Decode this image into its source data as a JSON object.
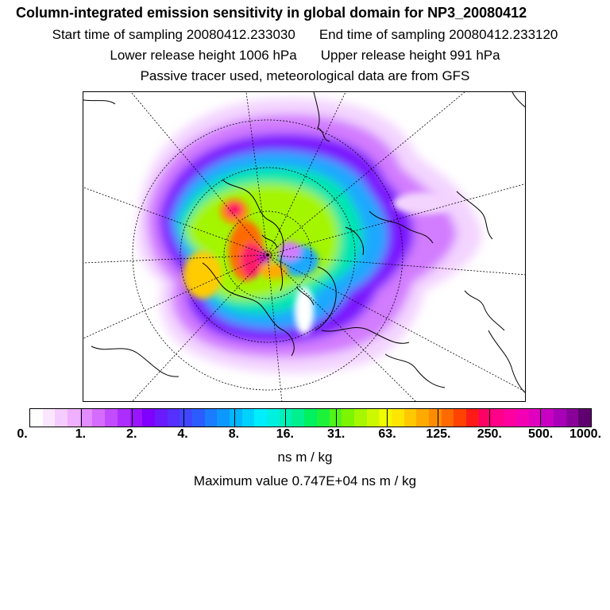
{
  "header": {
    "title": "Column-integrated emission sensitivity in global domain for NP3_20080412",
    "start_time": "Start time of sampling 20080412.233030",
    "end_time": "End time of sampling 20080412.233120",
    "lower_release": "Lower release height 1006 hPa",
    "upper_release": "Upper release height  991 hPa",
    "tracer_info": "Passive tracer used, meteorological data are from GFS"
  },
  "colorbar": {
    "colors": [
      "#ffffff",
      "#fbe6ff",
      "#f5ccff",
      "#eeb0ff",
      "#e28cff",
      "#d66bff",
      "#c24cff",
      "#ad2dff",
      "#9a14ff",
      "#8000ff",
      "#6a1aff",
      "#5530ff",
      "#3f46ff",
      "#2b5cff",
      "#1a7cff",
      "#0d98ff",
      "#00b6ff",
      "#00d2ff",
      "#00eeff",
      "#00f0e0",
      "#00f0b8",
      "#00f090",
      "#00f060",
      "#1cf23a",
      "#50f418",
      "#7cf500",
      "#a6f700",
      "#ccf900",
      "#f0fb00",
      "#ffe600",
      "#ffc800",
      "#ffaa00",
      "#ff8c00",
      "#ff6a00",
      "#ff4200",
      "#ff1a1a",
      "#ff0066",
      "#ff0088",
      "#ff00a0",
      "#f400b4",
      "#e000c0",
      "#c800c4",
      "#a800b8",
      "#880098",
      "#600070"
    ],
    "tick_labels": [
      "0.",
      "1.",
      "2.",
      "4.",
      "8.",
      "16.",
      "31.",
      "63.",
      "125.",
      "250.",
      "500.",
      "1000."
    ],
    "units": "ns m / kg"
  },
  "max_value": "Maximum value  0.747E+04 ns m / kg"
}
